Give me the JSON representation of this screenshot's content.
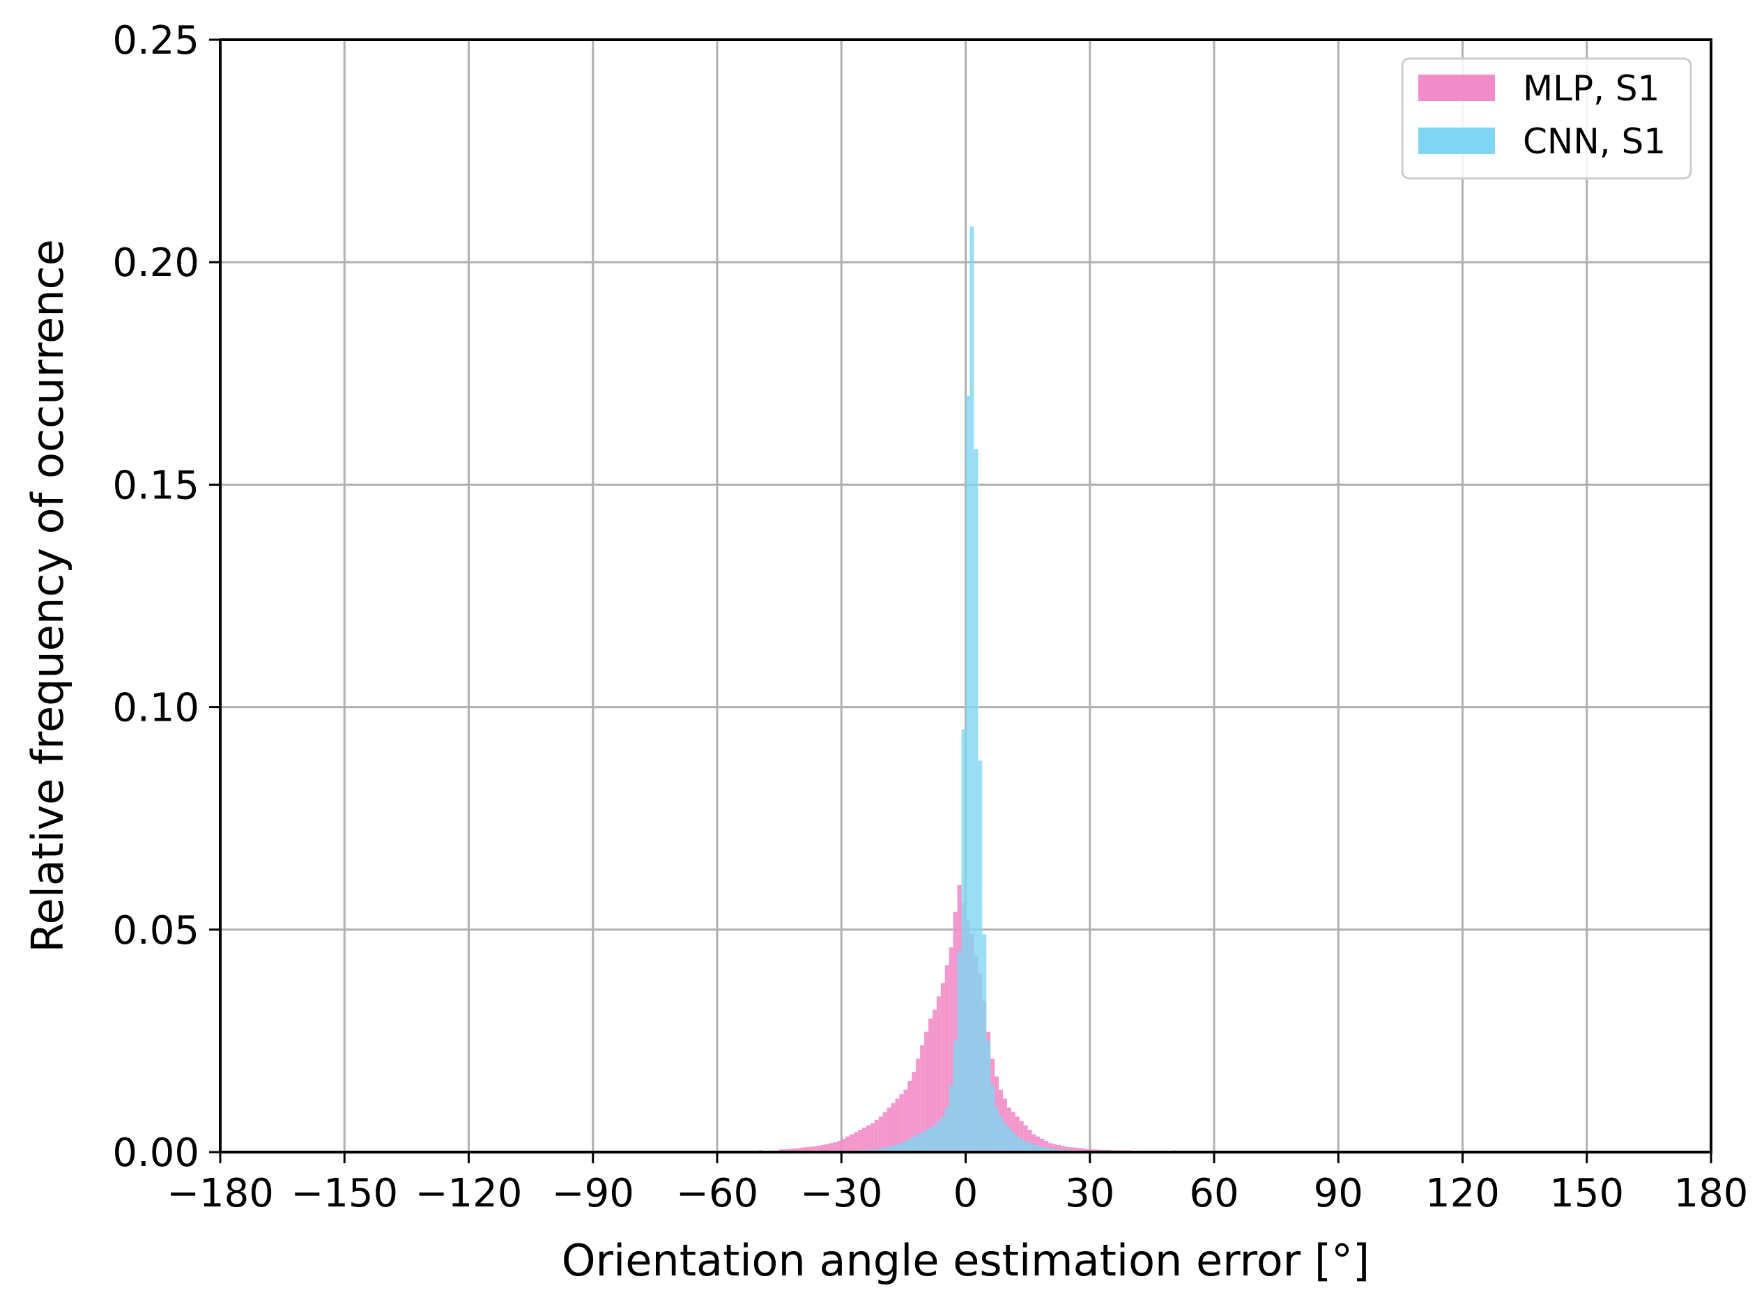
{
  "chart_data": {
    "type": "bar",
    "xlabel": "Orientation angle estimation error [°]",
    "ylabel": "Relative frequency of occurrence",
    "xlim": [
      -180,
      180
    ],
    "ylim": [
      0,
      0.25
    ],
    "xticks": [
      -180,
      -150,
      -120,
      -90,
      -60,
      -30,
      0,
      30,
      60,
      90,
      120,
      150,
      180
    ],
    "xtick_labels": [
      "−180",
      "−150",
      "−120",
      "−90",
      "−60",
      "−30",
      "0",
      "30",
      "60",
      "90",
      "120",
      "150",
      "180"
    ],
    "yticks": [
      0,
      0.05,
      0.1,
      0.15,
      0.2,
      0.25
    ],
    "ytick_labels": [
      "0.00",
      "0.05",
      "0.10",
      "0.15",
      "0.20",
      "0.25"
    ],
    "grid": true,
    "legend_position": "top-right",
    "bin_width": 1,
    "series": [
      {
        "name": "MLP, S1",
        "color": "#f28cc8",
        "bins": [
          [
            -45,
            0.0006
          ],
          [
            -44,
            0.0006
          ],
          [
            -43,
            0.0007
          ],
          [
            -42,
            0.0008
          ],
          [
            -41,
            0.0009
          ],
          [
            -40,
            0.001
          ],
          [
            -39,
            0.0011
          ],
          [
            -38,
            0.0012
          ],
          [
            -37,
            0.0013
          ],
          [
            -36,
            0.0014
          ],
          [
            -35,
            0.0016
          ],
          [
            -34,
            0.0018
          ],
          [
            -33,
            0.002
          ],
          [
            -32,
            0.0022
          ],
          [
            -31,
            0.0025
          ],
          [
            -30,
            0.003
          ],
          [
            -29,
            0.0035
          ],
          [
            -28,
            0.004
          ],
          [
            -27,
            0.0045
          ],
          [
            -26,
            0.005
          ],
          [
            -25,
            0.0055
          ],
          [
            -24,
            0.006
          ],
          [
            -23,
            0.0065
          ],
          [
            -22,
            0.0072
          ],
          [
            -21,
            0.008
          ],
          [
            -20,
            0.009
          ],
          [
            -19,
            0.01
          ],
          [
            -18,
            0.011
          ],
          [
            -17,
            0.012
          ],
          [
            -16,
            0.013
          ],
          [
            -15,
            0.014
          ],
          [
            -14,
            0.016
          ],
          [
            -13,
            0.018
          ],
          [
            -12,
            0.021
          ],
          [
            -11,
            0.024
          ],
          [
            -10,
            0.027
          ],
          [
            -9,
            0.03
          ],
          [
            -8,
            0.032
          ],
          [
            -7,
            0.035
          ],
          [
            -6,
            0.038
          ],
          [
            -5,
            0.042
          ],
          [
            -4,
            0.046
          ],
          [
            -3,
            0.054
          ],
          [
            -2,
            0.06
          ],
          [
            -1,
            0.056
          ],
          [
            0,
            0.052
          ],
          [
            1,
            0.049
          ],
          [
            2,
            0.044
          ],
          [
            3,
            0.04
          ],
          [
            4,
            0.034
          ],
          [
            5,
            0.027
          ],
          [
            6,
            0.021
          ],
          [
            7,
            0.017
          ],
          [
            8,
            0.014
          ],
          [
            9,
            0.012
          ],
          [
            10,
            0.01
          ],
          [
            11,
            0.009
          ],
          [
            12,
            0.008
          ],
          [
            13,
            0.007
          ],
          [
            14,
            0.006
          ],
          [
            15,
            0.005
          ],
          [
            16,
            0.004
          ],
          [
            17,
            0.0035
          ],
          [
            18,
            0.003
          ],
          [
            19,
            0.0025
          ],
          [
            20,
            0.002
          ],
          [
            21,
            0.0018
          ],
          [
            22,
            0.0016
          ],
          [
            23,
            0.0014
          ],
          [
            24,
            0.0012
          ],
          [
            25,
            0.0011
          ],
          [
            26,
            0.001
          ],
          [
            27,
            0.0009
          ],
          [
            28,
            0.0008
          ],
          [
            29,
            0.0007
          ],
          [
            30,
            0.0006
          ],
          [
            31,
            0.0006
          ],
          [
            32,
            0.0005
          ],
          [
            33,
            0.0005
          ],
          [
            34,
            0.0005
          ],
          [
            35,
            0.0004
          ],
          [
            36,
            0.0004
          ],
          [
            37,
            0.0004
          ],
          [
            38,
            0.0004
          ],
          [
            39,
            0.0004
          ],
          [
            40,
            0.0003
          ],
          [
            42,
            0.0003
          ],
          [
            44,
            0.0003
          ],
          [
            46,
            0.0003
          ],
          [
            48,
            0.0003
          ],
          [
            50,
            0.0004
          ],
          [
            52,
            0.0003
          ],
          [
            55,
            0.0002
          ],
          [
            60,
            0.0002
          ],
          [
            65,
            0.0002
          ],
          [
            70,
            0.0002
          ],
          [
            80,
            0.0002
          ],
          [
            90,
            0.0002
          ],
          [
            100,
            0.0002
          ],
          [
            110,
            0.0002
          ],
          [
            -50,
            0.0004
          ],
          [
            -55,
            0.0003
          ],
          [
            -60,
            0.0003
          ],
          [
            -65,
            0.0002
          ],
          [
            -70,
            0.0002
          ],
          [
            -80,
            0.0002
          ],
          [
            -90,
            0.0002
          ],
          [
            -100,
            0.0002
          ],
          [
            -120,
            0.0002
          ],
          [
            -150,
            0.0002
          ]
        ]
      },
      {
        "name": "CNN, S1",
        "color": "#7fd6f3",
        "bins": [
          [
            -20,
            0.001
          ],
          [
            -19,
            0.0012
          ],
          [
            -18,
            0.0015
          ],
          [
            -17,
            0.0018
          ],
          [
            -16,
            0.002
          ],
          [
            -15,
            0.0025
          ],
          [
            -14,
            0.003
          ],
          [
            -13,
            0.0035
          ],
          [
            -12,
            0.004
          ],
          [
            -11,
            0.0045
          ],
          [
            -10,
            0.005
          ],
          [
            -9,
            0.0055
          ],
          [
            -8,
            0.006
          ],
          [
            -7,
            0.007
          ],
          [
            -6,
            0.008
          ],
          [
            -5,
            0.01
          ],
          [
            -4,
            0.015
          ],
          [
            -3,
            0.025
          ],
          [
            -2,
            0.045
          ],
          [
            -1,
            0.095
          ],
          [
            0,
            0.17
          ],
          [
            1,
            0.208
          ],
          [
            2,
            0.158
          ],
          [
            3,
            0.088
          ],
          [
            4,
            0.049
          ],
          [
            5,
            0.025
          ],
          [
            6,
            0.015
          ],
          [
            7,
            0.01
          ],
          [
            8,
            0.008
          ],
          [
            9,
            0.0065
          ],
          [
            10,
            0.0055
          ],
          [
            11,
            0.0045
          ],
          [
            12,
            0.0035
          ],
          [
            13,
            0.003
          ],
          [
            14,
            0.0025
          ],
          [
            15,
            0.002
          ],
          [
            16,
            0.0018
          ],
          [
            17,
            0.0015
          ],
          [
            18,
            0.0012
          ],
          [
            19,
            0.001
          ],
          [
            20,
            0.0008
          ],
          [
            21,
            0.0007
          ],
          [
            22,
            0.0006
          ],
          [
            23,
            0.0005
          ],
          [
            24,
            0.0005
          ],
          [
            25,
            0.0004
          ],
          [
            26,
            0.0004
          ],
          [
            27,
            0.0004
          ],
          [
            28,
            0.0003
          ],
          [
            29,
            0.0003
          ],
          [
            30,
            0.0003
          ],
          [
            -21,
            0.0008
          ],
          [
            -22,
            0.0007
          ],
          [
            -23,
            0.0006
          ],
          [
            -24,
            0.0005
          ],
          [
            -25,
            0.0005
          ],
          [
            -26,
            0.0004
          ],
          [
            -27,
            0.0004
          ],
          [
            -28,
            0.0003
          ],
          [
            -29,
            0.0003
          ],
          [
            -30,
            0.0003
          ],
          [
            -35,
            0.0002
          ],
          [
            -40,
            0.0002
          ],
          [
            35,
            0.0002
          ],
          [
            40,
            0.0002
          ]
        ]
      }
    ]
  }
}
